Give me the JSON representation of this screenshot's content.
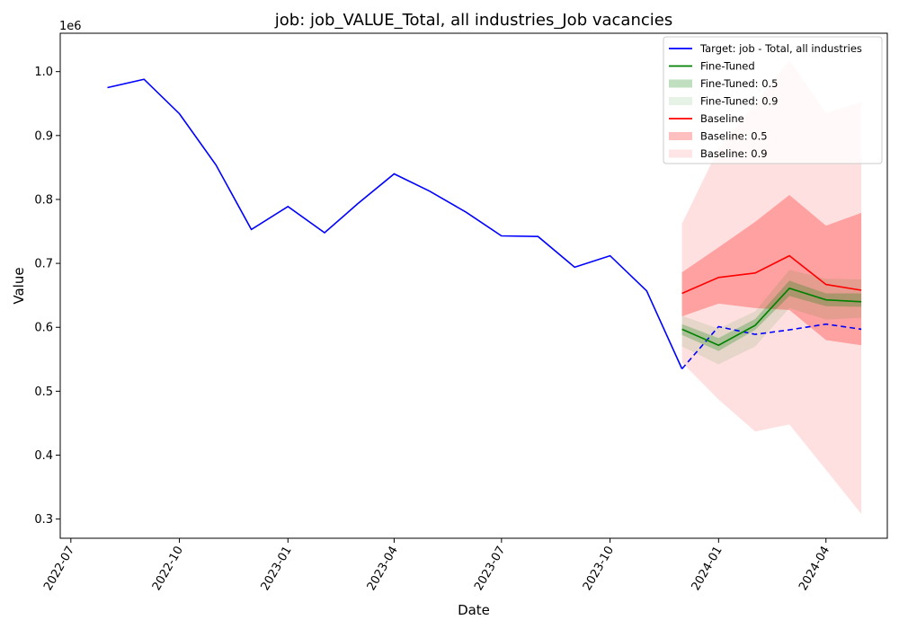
{
  "chart_data": {
    "type": "line",
    "title": "job: job_VALUE_Total, all industries_Job vacancies",
    "xlabel": "Date",
    "ylabel": "Value",
    "y_offset_label": "1e6",
    "x_range": [
      "2022-06-22",
      "2024-05-23"
    ],
    "ylim": [
      270000,
      1060000
    ],
    "y_ticks": [
      {
        "value": 300000,
        "label": "0.3"
      },
      {
        "value": 400000,
        "label": "0.4"
      },
      {
        "value": 500000,
        "label": "0.5"
      },
      {
        "value": 600000,
        "label": "0.6"
      },
      {
        "value": 700000,
        "label": "0.7"
      },
      {
        "value": 800000,
        "label": "0.8"
      },
      {
        "value": 900000,
        "label": "0.9"
      },
      {
        "value": 1000000,
        "label": "1.0"
      }
    ],
    "x_ticks": [
      {
        "date": "2022-07-01",
        "label": "2022-07"
      },
      {
        "date": "2022-10-01",
        "label": "2022-10"
      },
      {
        "date": "2023-01-01",
        "label": "2023-01"
      },
      {
        "date": "2023-04-01",
        "label": "2023-04"
      },
      {
        "date": "2023-07-01",
        "label": "2023-07"
      },
      {
        "date": "2023-10-01",
        "label": "2023-10"
      },
      {
        "date": "2024-01-01",
        "label": "2024-01"
      },
      {
        "date": "2024-04-01",
        "label": "2024-04"
      }
    ],
    "legend_position": "top-right",
    "target_history": {
      "x": [
        "2022-08-01",
        "2022-09-01",
        "2022-10-01",
        "2022-11-01",
        "2022-12-01",
        "2023-01-01",
        "2023-02-01",
        "2023-03-01",
        "2023-04-01",
        "2023-05-01",
        "2023-06-01",
        "2023-07-01",
        "2023-08-01",
        "2023-09-01",
        "2023-10-01",
        "2023-11-01",
        "2023-12-01"
      ],
      "y": [
        975000,
        988000,
        934000,
        854000,
        753000,
        789000,
        748000,
        793000,
        840000,
        813000,
        780000,
        743000,
        742000,
        694000,
        712000,
        657000,
        535000
      ]
    },
    "target_future": {
      "x": [
        "2023-12-01",
        "2024-01-01",
        "2024-02-01",
        "2024-03-01",
        "2024-04-01",
        "2024-05-01"
      ],
      "y": [
        535000,
        601000,
        589000,
        596000,
        605000,
        597000
      ]
    },
    "forecast_x": [
      "2023-12-01",
      "2024-01-01",
      "2024-02-01",
      "2024-03-01",
      "2024-04-01",
      "2024-05-01"
    ],
    "fine_tuned": {
      "median": [
        597000,
        572000,
        603000,
        661000,
        643000,
        640000
      ],
      "band_50": {
        "lower": [
          588000,
          563000,
          596000,
          649000,
          633000,
          632000
        ],
        "upper": [
          605000,
          583000,
          613000,
          673000,
          653000,
          653000
        ]
      },
      "band_90": {
        "lower": [
          570000,
          542000,
          570000,
          630000,
          612000,
          615000
        ],
        "upper": [
          618000,
          598000,
          625000,
          690000,
          676000,
          675000
        ]
      }
    },
    "baseline": {
      "median": [
        653000,
        678000,
        685000,
        712000,
        667000,
        658000
      ],
      "band_50": {
        "lower": [
          617000,
          637000,
          630000,
          627000,
          580000,
          572000
        ],
        "upper": [
          686000,
          725000,
          765000,
          807000,
          759000,
          779000
        ]
      },
      "band_90": {
        "lower": [
          545000,
          487000,
          437000,
          448000,
          377000,
          308000
        ],
        "upper": [
          762000,
          880000,
          950000,
          1018000,
          935000,
          952000
        ]
      }
    },
    "legend": [
      {
        "label": "Target: job - Total, all industries",
        "kind": "line",
        "color": "#0000ff"
      },
      {
        "label": "Fine-Tuned",
        "kind": "line",
        "color": "#008000"
      },
      {
        "label": "Fine-Tuned: 0.5",
        "kind": "patch",
        "color": "#008000",
        "opacity": 0.25
      },
      {
        "label": "Fine-Tuned: 0.9",
        "kind": "patch",
        "color": "#008000",
        "opacity": 0.1
      },
      {
        "label": "Baseline",
        "kind": "line",
        "color": "#ff0000"
      },
      {
        "label": "Baseline: 0.5",
        "kind": "patch",
        "color": "#ff0000",
        "opacity": 0.25
      },
      {
        "label": "Baseline: 0.9",
        "kind": "patch",
        "color": "#ff0000",
        "opacity": 0.1
      }
    ],
    "colors": {
      "target": "#0000ff",
      "fine_tuned": "#008000",
      "baseline": "#ff0000"
    }
  }
}
